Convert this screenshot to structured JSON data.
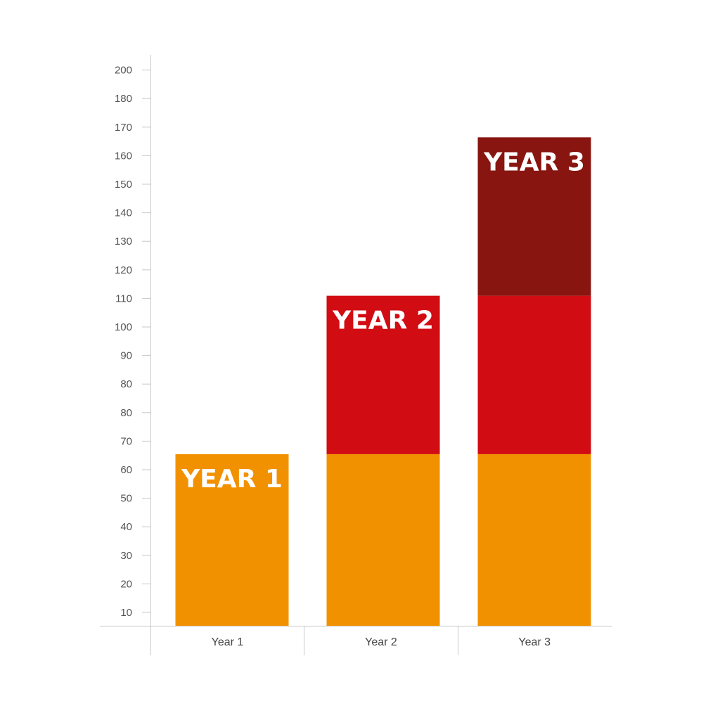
{
  "chart_data": {
    "type": "bar",
    "stacked": true,
    "categories": [
      "Year 1",
      "Year 2",
      "Year 3"
    ],
    "y_ticks": [
      "10",
      "20",
      "30",
      "40",
      "50",
      "60",
      "70",
      "80",
      "80",
      "90",
      "100",
      "110",
      "120",
      "130",
      "140",
      "150",
      "160",
      "170",
      "180",
      "200"
    ],
    "series": [
      {
        "color": "#F29100",
        "values": [
          65,
          65,
          65
        ]
      },
      {
        "color": "#D20C13",
        "values": [
          0,
          60,
          60
        ]
      },
      {
        "color": "#881510",
        "values": [
          0,
          0,
          60
        ]
      }
    ],
    "segment_labels": [
      {
        "category": "Year 1",
        "series_index": 0,
        "text": "YEAR 1"
      },
      {
        "category": "Year 2",
        "series_index": 1,
        "text": "YEAR 2"
      },
      {
        "category": "Year 3",
        "series_index": 2,
        "text": "YEAR 3"
      }
    ],
    "grid": false,
    "legend": "none"
  }
}
